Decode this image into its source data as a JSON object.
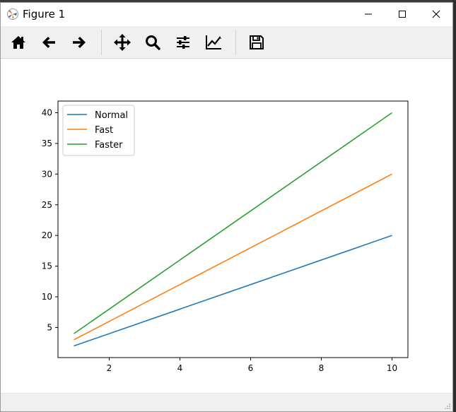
{
  "window": {
    "title": "Figure 1"
  },
  "toolbar": {
    "tools": [
      {
        "name": "home-icon"
      },
      {
        "name": "back-arrow-icon"
      },
      {
        "name": "forward-arrow-icon"
      },
      {
        "name": "pan-move-icon"
      },
      {
        "name": "zoom-magnifier-icon"
      },
      {
        "name": "configure-subplots-icon"
      },
      {
        "name": "edit-axis-icon"
      },
      {
        "name": "save-floppy-icon"
      }
    ]
  },
  "chart_data": {
    "type": "line",
    "x": [
      1,
      10
    ],
    "series": [
      {
        "name": "Normal",
        "values": [
          2,
          20
        ],
        "color": "#1f77b4"
      },
      {
        "name": "Fast",
        "values": [
          3,
          30
        ],
        "color": "#ff7f0e"
      },
      {
        "name": "Faster",
        "values": [
          4,
          40
        ],
        "color": "#2ca02c"
      }
    ],
    "xlim": [
      0.55,
      10.45
    ],
    "ylim": [
      0.1,
      41.9
    ],
    "xticks": [
      2,
      4,
      6,
      8,
      10
    ],
    "yticks": [
      5,
      10,
      15,
      20,
      25,
      30,
      35,
      40
    ],
    "grid": false,
    "legend": "top-left"
  }
}
